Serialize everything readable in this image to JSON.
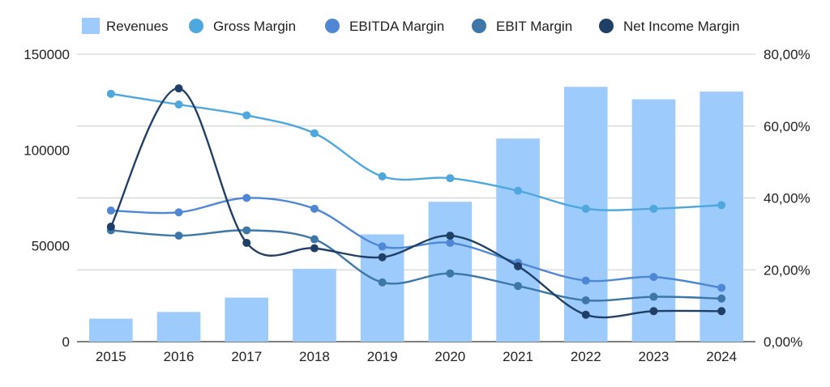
{
  "chart_data": {
    "type": "bar",
    "title": "",
    "categories": [
      "2015",
      "2016",
      "2017",
      "2018",
      "2019",
      "2020",
      "2021",
      "2022",
      "2023",
      "2024"
    ],
    "series": [
      {
        "name": "Revenues",
        "kind": "bar",
        "axis": "left",
        "color": "#9ccbfc",
        "values": [
          12000,
          15500,
          23000,
          38000,
          56000,
          73000,
          106000,
          133000,
          126500,
          130500
        ]
      },
      {
        "name": "Gross Margin",
        "kind": "line",
        "axis": "right",
        "color": "#4ea7dd",
        "values": [
          69,
          66,
          63,
          58,
          46,
          45.5,
          42,
          37,
          37,
          38
        ]
      },
      {
        "name": "EBITDA Margin",
        "kind": "line",
        "axis": "right",
        "color": "#4f87d6",
        "values": [
          36.5,
          36,
          40,
          37,
          26.5,
          27.5,
          22,
          17,
          18,
          15
        ]
      },
      {
        "name": "EBIT Margin",
        "kind": "line",
        "axis": "right",
        "color": "#3c77a8",
        "values": [
          31,
          29.5,
          31,
          28.5,
          16.5,
          19,
          15.5,
          11.5,
          12.5,
          12
        ]
      },
      {
        "name": "Net Income Margin",
        "kind": "line",
        "axis": "right",
        "color": "#203f66",
        "values": [
          32,
          70.5,
          27.5,
          26,
          23.5,
          29.5,
          21,
          7.5,
          8.5,
          8.5
        ]
      }
    ],
    "y_left": {
      "ylim": [
        0,
        150000
      ],
      "ticks": [
        "0",
        "50000",
        "100000",
        "150000"
      ]
    },
    "y_right": {
      "ylim": [
        0,
        80
      ],
      "ticks": [
        "0,00%",
        "20,00%",
        "40,00%",
        "60,00%",
        "80,00%"
      ]
    },
    "grid": true,
    "legend": "top"
  }
}
